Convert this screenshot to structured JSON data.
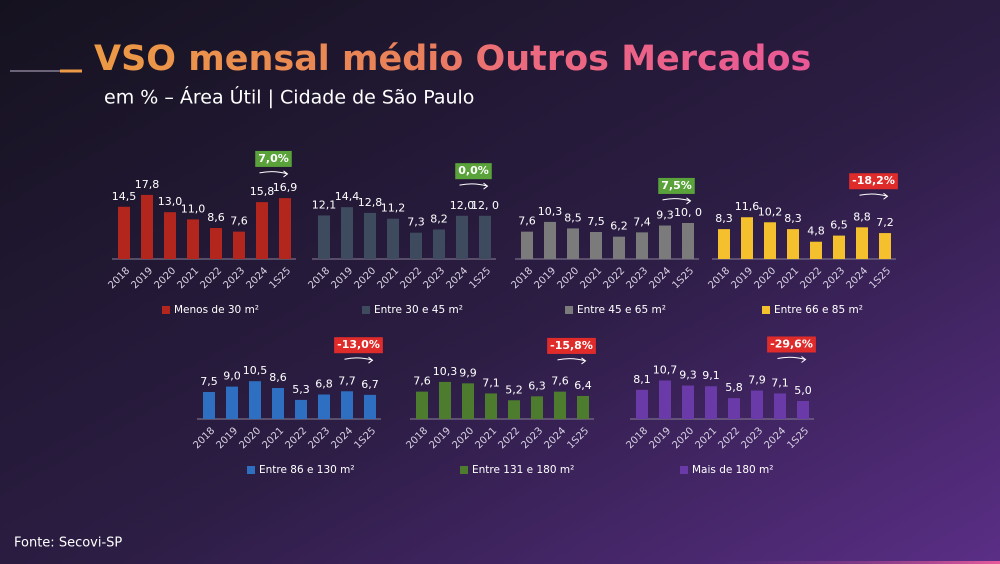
{
  "title": "VSO mensal médio Outros Mercados",
  "subtitle": "em % – Área Útil | Cidade de São Paulo",
  "source": "Fonte: Secovi-SP",
  "chart_data": [
    {
      "type": "bar",
      "categories": [
        "2018",
        "2019",
        "2020",
        "2021",
        "2022",
        "2023",
        "2024",
        "1S25"
      ],
      "series": [
        {
          "name": "Menos de 30 m²",
          "color": "#b3261e",
          "values": [
            14.5,
            17.8,
            13.0,
            11.0,
            8.6,
            7.6,
            15.8,
            16.9
          ],
          "value_labels": [
            "14,5",
            "17,8",
            "13,0",
            "11,0",
            "8,6",
            "7,6",
            "15,8",
            "16,9"
          ]
        }
      ],
      "annotation": {
        "text": "7,0%",
        "color": "#5aa33a"
      }
    },
    {
      "type": "bar",
      "categories": [
        "2018",
        "2019",
        "2020",
        "2021",
        "2022",
        "2023",
        "2024",
        "1S25"
      ],
      "series": [
        {
          "name": "Entre 30 e 45 m²",
          "color": "#3e4a5e",
          "values": [
            12.1,
            14.4,
            12.8,
            11.2,
            7.3,
            8.2,
            12.0,
            12.0
          ],
          "value_labels": [
            "12,1",
            "14,4",
            "12,8",
            "11,2",
            "7,3",
            "8,2",
            "12,0",
            "12, 0"
          ]
        }
      ],
      "annotation": {
        "text": "0,0%",
        "color": "#5aa33a"
      }
    },
    {
      "type": "bar",
      "categories": [
        "2018",
        "2019",
        "2020",
        "2021",
        "2022",
        "2023",
        "2024",
        "1S25"
      ],
      "series": [
        {
          "name": "Entre 45 e 65 m²",
          "color": "#7b7b7b",
          "values": [
            7.6,
            10.3,
            8.5,
            7.5,
            6.2,
            7.4,
            9.3,
            10.0
          ],
          "value_labels": [
            "7,6",
            "10,3",
            "8,5",
            "7,5",
            "6,2",
            "7,4",
            "9,3",
            "10, 0"
          ]
        }
      ],
      "annotation": {
        "text": "7,5%",
        "color": "#5aa33a"
      }
    },
    {
      "type": "bar",
      "categories": [
        "2018",
        "2019",
        "2020",
        "2021",
        "2022",
        "2023",
        "2024",
        "1S25"
      ],
      "series": [
        {
          "name": "Entre 66 e 85 m²",
          "color": "#f4c02e",
          "values": [
            8.3,
            11.6,
            10.2,
            8.3,
            4.8,
            6.5,
            8.8,
            7.2
          ],
          "value_labels": [
            "8,3",
            "11,6",
            "10,2",
            "8,3",
            "4,8",
            "6,5",
            "8,8",
            "7,2"
          ]
        }
      ],
      "annotation": {
        "text": "-18,2%",
        "color": "#e02b2b"
      }
    },
    {
      "type": "bar",
      "categories": [
        "2018",
        "2019",
        "2020",
        "2021",
        "2022",
        "2023",
        "2024",
        "1S25"
      ],
      "series": [
        {
          "name": "Entre 86 e 130 m²",
          "color": "#2f6fc2",
          "values": [
            7.5,
            9.0,
            10.5,
            8.6,
            5.3,
            6.8,
            7.7,
            6.7
          ],
          "value_labels": [
            "7,5",
            "9,0",
            "10,5",
            "8,6",
            "5,3",
            "6,8",
            "7,7",
            "6,7"
          ]
        }
      ],
      "annotation": {
        "text": "-13,0%",
        "color": "#e02b2b"
      }
    },
    {
      "type": "bar",
      "categories": [
        "2018",
        "2019",
        "2020",
        "2021",
        "2022",
        "2023",
        "2024",
        "1S25"
      ],
      "series": [
        {
          "name": "Entre 131 e 180 m²",
          "color": "#4e7c2f",
          "values": [
            7.6,
            10.3,
            9.9,
            7.1,
            5.2,
            6.3,
            7.6,
            6.4
          ],
          "value_labels": [
            "7,6",
            "10,3",
            "9,9",
            "7,1",
            "5,2",
            "6,3",
            "7,6",
            "6,4"
          ]
        }
      ],
      "annotation": {
        "text": "-15,8%",
        "color": "#e02b2b"
      }
    },
    {
      "type": "bar",
      "categories": [
        "2018",
        "2019",
        "2020",
        "2021",
        "2022",
        "2023",
        "2024",
        "1S25"
      ],
      "series": [
        {
          "name": "Mais de 180 m²",
          "color": "#6a3aa8",
          "values": [
            8.1,
            10.7,
            9.3,
            9.1,
            5.8,
            7.9,
            7.1,
            5.0
          ],
          "value_labels": [
            "8,1",
            "10,7",
            "9,3",
            "9,1",
            "5,8",
            "7,9",
            "7,1",
            "5,0"
          ]
        }
      ],
      "annotation": {
        "text": "-29,6%",
        "color": "#e02b2b"
      }
    }
  ]
}
